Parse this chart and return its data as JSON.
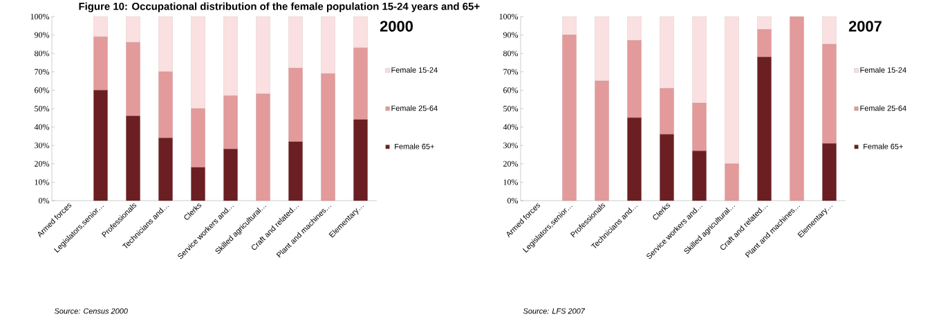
{
  "chart_data": [
    {
      "type": "bar",
      "stacked": true,
      "title": "Figure 10: Occupational distribution of the female population 15-24 years and 65+",
      "subtitle": "2000",
      "categories": [
        "Armed forces",
        "Legislators,senior…",
        "Professionals",
        "Technicians and…",
        "Clerks",
        "Service workers and…",
        "Skilled agricultural…",
        "Craft and related…",
        "Plant and machines…",
        "Elementary…"
      ],
      "series": [
        {
          "name": "Female 65+",
          "color": "#6b1f22",
          "values": [
            0,
            60,
            46,
            34,
            18,
            28,
            0,
            32,
            0,
            44
          ]
        },
        {
          "name": "Female 25-64",
          "color": "#e39a9a",
          "values": [
            0,
            29,
            40,
            36,
            32,
            29,
            58,
            40,
            69,
            39
          ]
        },
        {
          "name": "Female 15-24",
          "color": "#fae0e0",
          "values": [
            0,
            11,
            14,
            30,
            50,
            43,
            42,
            28,
            31,
            17
          ]
        }
      ],
      "ylim": [
        0,
        100
      ],
      "yticks": [
        {
          "value": 0,
          "label": "0%"
        },
        {
          "value": 10,
          "label": "10%"
        },
        {
          "value": 20,
          "label": "20%"
        },
        {
          "value": 30,
          "label": "30%"
        },
        {
          "value": 40,
          "label": "40%"
        },
        {
          "value": 50,
          "label": "50%"
        },
        {
          "value": 60,
          "label": "60%"
        },
        {
          "value": 70,
          "label": "70%"
        },
        {
          "value": 80,
          "label": "80%"
        },
        {
          "value": 90,
          "label": "90%"
        },
        {
          "value": 100,
          "label": "100%"
        }
      ],
      "legend": "right",
      "annotations": [
        "Source: Census 2000"
      ]
    },
    {
      "type": "bar",
      "stacked": true,
      "subtitle": "2007",
      "categories": [
        "Armed forces",
        "Legislators,senior…",
        "Professionals",
        "Technicians and…",
        "Clerks",
        "Service workers and…",
        "Skilled agricultural…",
        "Craft and related…",
        "Plant and machines…",
        "Elementary…"
      ],
      "series": [
        {
          "name": "Female 65+",
          "color": "#6b1f22",
          "values": [
            0,
            0,
            0,
            45,
            36,
            27,
            0,
            78,
            0,
            31
          ]
        },
        {
          "name": "Female 25-64",
          "color": "#e39a9a",
          "values": [
            0,
            90,
            65,
            42,
            25,
            26,
            20,
            15,
            100,
            54
          ]
        },
        {
          "name": "Female 15-24",
          "color": "#fae0e0",
          "values": [
            0,
            10,
            35,
            13,
            39,
            47,
            80,
            7,
            0,
            15
          ]
        }
      ],
      "ylim": [
        0,
        100
      ],
      "yticks": [
        {
          "value": 0,
          "label": "0%"
        },
        {
          "value": 10,
          "label": "10%"
        },
        {
          "value": 20,
          "label": "20%"
        },
        {
          "value": 30,
          "label": "30%"
        },
        {
          "value": 40,
          "label": "40%"
        },
        {
          "value": 50,
          "label": "50%"
        },
        {
          "value": 60,
          "label": "60%"
        },
        {
          "value": 70,
          "label": "70%"
        },
        {
          "value": 80,
          "label": "80%"
        },
        {
          "value": 90,
          "label": "90%"
        },
        {
          "value": 100,
          "label": "100%"
        }
      ],
      "legend": "right",
      "annotations": [
        "Source: LFS 2007"
      ]
    }
  ]
}
